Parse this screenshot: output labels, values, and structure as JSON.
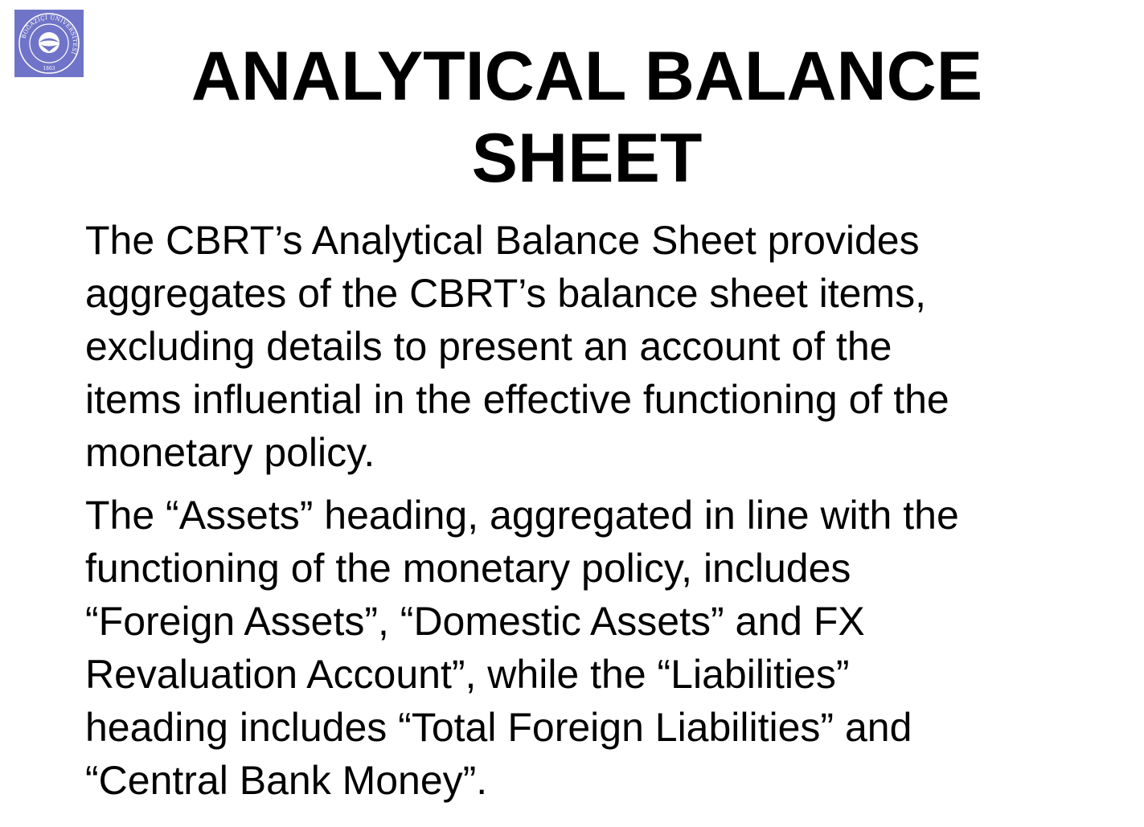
{
  "logo": {
    "icon": "bogazici-university-seal-icon",
    "ring_text": "BOĞAZİÇİ ÜNİVERSİTESİ",
    "year": "1863",
    "color": "#6f74c8"
  },
  "title": {
    "line1": "ANALYTICAL BALANCE",
    "line2": "SHEET"
  },
  "paragraphs": [
    {
      "lines": [
        "The CBRT’s Analytical Balance Sheet provides",
        "aggregates of the CBRT’s balance sheet items,",
        "excluding details to present an account of the",
        "items influential in the effective functioning of the",
        "monetary policy."
      ]
    },
    {
      "lines": [
        "The “Assets” heading, aggregated in line with the",
        "functioning of the monetary policy, includes",
        "“Foreign Assets”, “Domestic Assets” and FX",
        "Revaluation Account”, while the “Liabilities”",
        "heading includes “Total Foreign Liabilities” and",
        "“Central Bank Money”."
      ]
    }
  ]
}
